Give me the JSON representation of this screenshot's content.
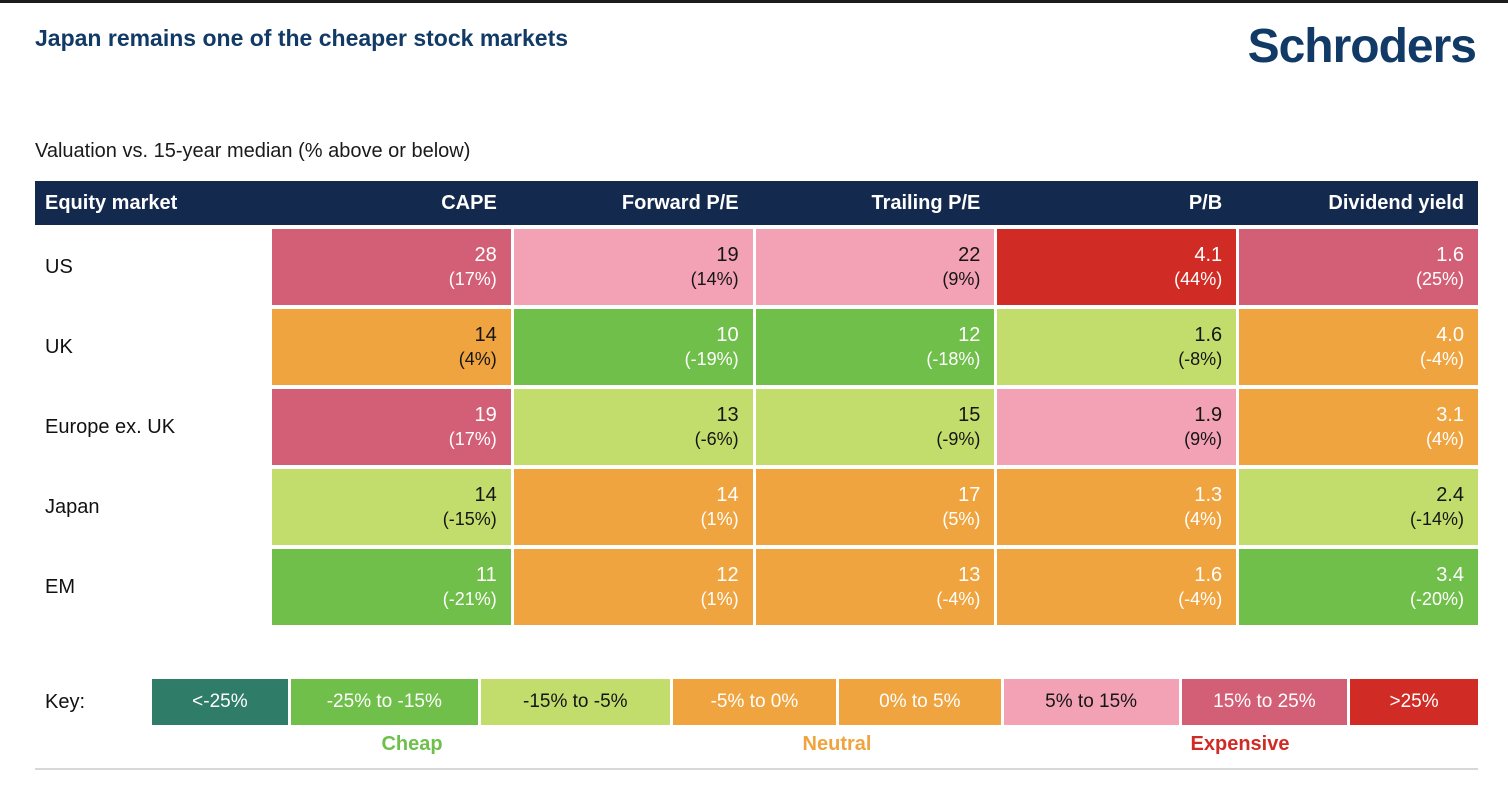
{
  "header": {
    "title": "Japan remains one of the cheaper stock markets",
    "logo": "Schroders"
  },
  "subtitle": "Valuation vs. 15-year median (% above or below)",
  "table": {
    "columns": [
      "Equity market",
      "CAPE",
      "Forward P/E",
      "Trailing P/E",
      "P/B",
      "Dividend yield"
    ],
    "rows": [
      {
        "market": "US",
        "cape": {
          "v": "28",
          "p": "(17%)",
          "band": "rose"
        },
        "fwd": {
          "v": "19",
          "p": "(14%)",
          "band": "pink"
        },
        "trail": {
          "v": "22",
          "p": "(9%)",
          "band": "pink"
        },
        "pb": {
          "v": "4.1",
          "p": "(44%)",
          "band": "red"
        },
        "div": {
          "v": "1.6",
          "p": "(25%)",
          "band": "rose"
        }
      },
      {
        "market": "UK",
        "cape": {
          "v": "14",
          "p": "(4%)",
          "band": "orange-dark"
        },
        "fwd": {
          "v": "10",
          "p": "(-19%)",
          "band": "green"
        },
        "trail": {
          "v": "12",
          "p": "(-18%)",
          "band": "green"
        },
        "pb": {
          "v": "1.6",
          "p": "(-8%)",
          "band": "lightgreen"
        },
        "div": {
          "v": "4.0",
          "p": "(-4%)",
          "band": "orange"
        }
      },
      {
        "market": "Europe ex. UK",
        "cape": {
          "v": "19",
          "p": "(17%)",
          "band": "rose"
        },
        "fwd": {
          "v": "13",
          "p": "(-6%)",
          "band": "lightgreen"
        },
        "trail": {
          "v": "15",
          "p": "(-9%)",
          "band": "lightgreen"
        },
        "pb": {
          "v": "1.9",
          "p": "(9%)",
          "band": "pink"
        },
        "div": {
          "v": "3.1",
          "p": "(4%)",
          "band": "orange"
        }
      },
      {
        "market": "Japan",
        "cape": {
          "v": "14",
          "p": "(-15%)",
          "band": "lightgreen"
        },
        "fwd": {
          "v": "14",
          "p": "(1%)",
          "band": "orange"
        },
        "trail": {
          "v": "17",
          "p": "(5%)",
          "band": "orange"
        },
        "pb": {
          "v": "1.3",
          "p": "(4%)",
          "band": "orange"
        },
        "div": {
          "v": "2.4",
          "p": "(-14%)",
          "band": "lightgreen"
        }
      },
      {
        "market": "EM",
        "cape": {
          "v": "11",
          "p": "(-21%)",
          "band": "green"
        },
        "fwd": {
          "v": "12",
          "p": "(1%)",
          "band": "orange"
        },
        "trail": {
          "v": "13",
          "p": "(-4%)",
          "band": "orange"
        },
        "pb": {
          "v": "1.6",
          "p": "(-4%)",
          "band": "orange"
        },
        "div": {
          "v": "3.4",
          "p": "(-20%)",
          "band": "green"
        }
      }
    ]
  },
  "key": {
    "label": "Key:",
    "segments": [
      {
        "label": "<-25%",
        "band": "teal"
      },
      {
        "label": "-25% to -15%",
        "band": "green"
      },
      {
        "label": "-15% to -5%",
        "band": "lightgreen"
      },
      {
        "label": "-5% to 0%",
        "band": "orange"
      },
      {
        "label": "0% to 5%",
        "band": "orange"
      },
      {
        "label": "5% to 15%",
        "band": "pink"
      },
      {
        "label": "15% to 25%",
        "band": "rose"
      },
      {
        "label": ">25%",
        "band": "red"
      }
    ],
    "groups": [
      {
        "label": "Cheap",
        "color": "#6fbf4b"
      },
      {
        "label": "Neutral",
        "color": "#efa43f"
      },
      {
        "label": "Expensive",
        "color": "#d12b25"
      }
    ]
  },
  "colors": {
    "header_navy": "#14294e",
    "title_navy": "#123a66",
    "teal": "#2f7d68",
    "green": "#70bf4b",
    "lightgreen": "#c3dd6d",
    "orange": "#efa43f",
    "pink": "#f2a2b4",
    "rose": "#d25f76",
    "red": "#d12b25"
  },
  "chart_data": {
    "type": "heatmap",
    "title": "Japan remains one of the cheaper stock markets",
    "subtitle": "Valuation vs. 15-year median (% above or below)",
    "row_labels": [
      "US",
      "UK",
      "Europe ex. UK",
      "Japan",
      "EM"
    ],
    "column_labels": [
      "CAPE",
      "Forward P/E",
      "Trailing P/E",
      "P/B",
      "Dividend yield"
    ],
    "values": [
      [
        28,
        19,
        22,
        4.1,
        1.6
      ],
      [
        14,
        10,
        12,
        1.6,
        4.0
      ],
      [
        19,
        13,
        15,
        1.9,
        3.1
      ],
      [
        14,
        14,
        17,
        1.3,
        2.4
      ],
      [
        11,
        12,
        13,
        1.6,
        3.4
      ]
    ],
    "pct_vs_15yr_median": [
      [
        17,
        14,
        9,
        44,
        25
      ],
      [
        4,
        -19,
        -18,
        -8,
        -4
      ],
      [
        17,
        -6,
        -9,
        9,
        4
      ],
      [
        -15,
        1,
        5,
        4,
        -14
      ],
      [
        -21,
        1,
        -4,
        -4,
        -20
      ]
    ],
    "legend_bins": [
      "<-25%",
      "-25% to -15%",
      "-15% to -5%",
      "-5% to 0%",
      "0% to 5%",
      "5% to 15%",
      "15% to 25%",
      ">25%"
    ],
    "legend_groups": [
      "Cheap",
      "Neutral",
      "Expensive"
    ],
    "legend_position": "bottom",
    "grid": false
  }
}
